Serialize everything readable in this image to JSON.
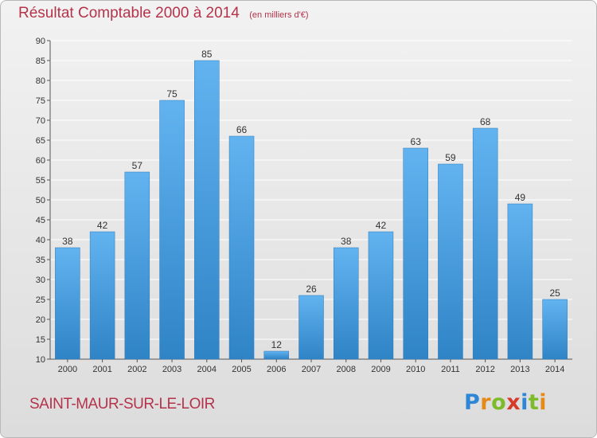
{
  "chart_data": {
    "type": "bar",
    "title": "Résultat Comptable 2000 à 2014",
    "subtitle": "(en milliers d'€)",
    "xlabel": "",
    "ylabel": "",
    "categories": [
      "2000",
      "2001",
      "2002",
      "2003",
      "2004",
      "2005",
      "2006",
      "2007",
      "2008",
      "2009",
      "2010",
      "2011",
      "2012",
      "2013",
      "2014"
    ],
    "values": [
      38,
      42,
      57,
      75,
      85,
      66,
      12,
      26,
      38,
      42,
      63,
      59,
      68,
      49,
      25
    ],
    "ylim": [
      10,
      90
    ],
    "yticks": [
      10,
      15,
      20,
      25,
      30,
      35,
      40,
      45,
      50,
      55,
      60,
      65,
      70,
      75,
      80,
      85,
      90
    ],
    "grid": true,
    "legend": "none",
    "bar_color": "#4b9fe0",
    "title_color": "#b5334a"
  },
  "footer": {
    "commune": "SAINT-MAUR-SUR-LE-LOIR",
    "logo": {
      "letters": [
        "P",
        "r",
        "o",
        "x",
        "i",
        "t",
        "i"
      ],
      "colors": [
        "#2e86d6",
        "#e58a16",
        "#7dbb2a",
        "#d63a2a",
        "#2e86d6",
        "#7dbb2a",
        "#e58a16"
      ]
    }
  }
}
